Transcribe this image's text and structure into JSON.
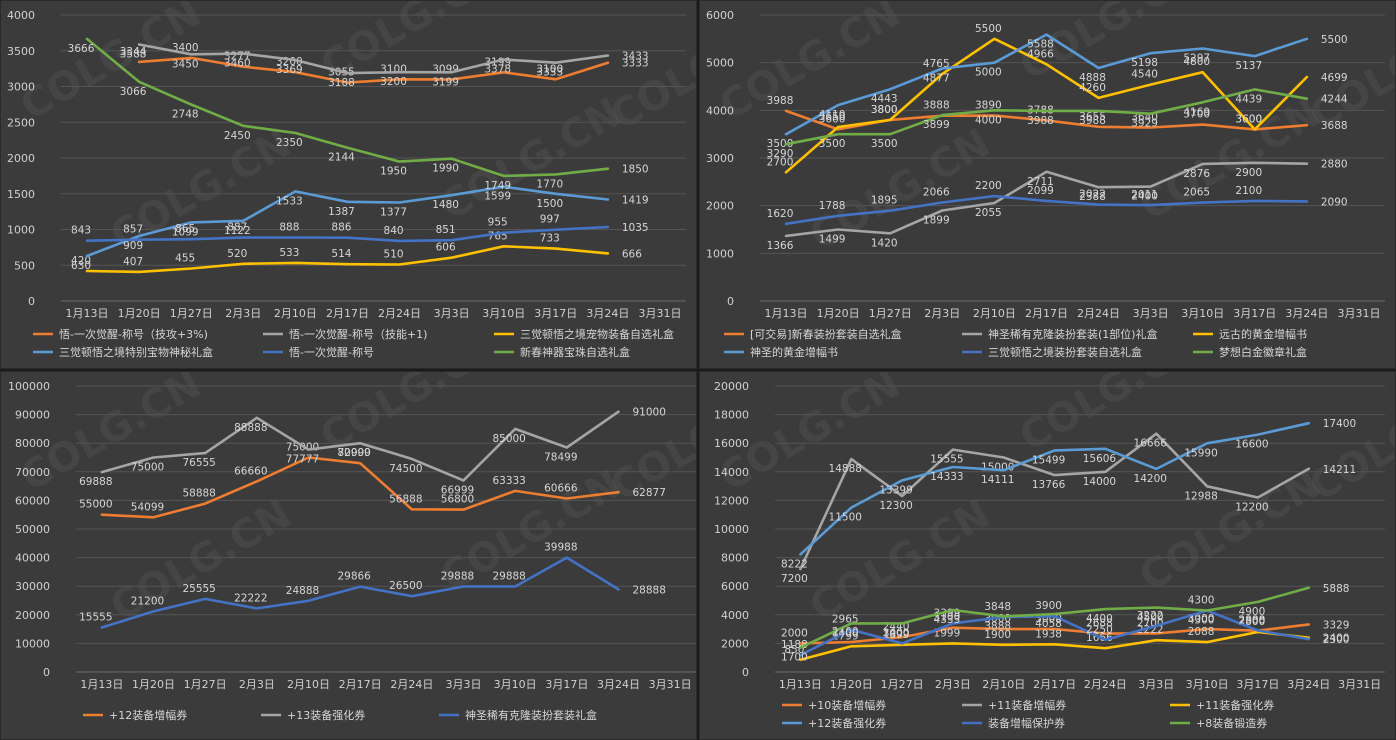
{
  "watermark": "COLG.CN",
  "chart_data": [
    {
      "type": "line",
      "categories": [
        "1月13日",
        "1月20日",
        "1月27日",
        "2月3日",
        "2月10日",
        "2月17日",
        "2月24日",
        "3月3日",
        "3月10日",
        "3月17日",
        "3月24日",
        "3月31日"
      ],
      "ylim": [
        0,
        4000
      ],
      "yticks": [
        0,
        500,
        1000,
        1500,
        2000,
        2500,
        3000,
        3500,
        4000
      ],
      "grid": true,
      "legend_position": "bottom",
      "series": [
        {
          "name": "悟-一次觉醒-称号（技攻+3%)",
          "color": "#ed7d31",
          "values": [
            null,
            3344,
            3400,
            3277,
            3200,
            3055,
            3100,
            3099,
            3199,
            3100,
            3333,
            null
          ]
        },
        {
          "name": "悟-一次觉醒-称号（技能+1)",
          "color": "#a5a5a5",
          "values": [
            null,
            3588,
            3450,
            3460,
            3369,
            3188,
            3200,
            3199,
            3378,
            3333,
            3433,
            null
          ]
        },
        {
          "name": "三觉顿悟之境宠物装备自选礼盒",
          "color": "#ffc000",
          "values": [
            420,
            407,
            455,
            520,
            533,
            514,
            510,
            606,
            765,
            733,
            666,
            null
          ]
        },
        {
          "name": "三觉顿悟之境特别宝物神秘礼盒",
          "color": "#5b9bd5",
          "values": [
            630,
            909,
            1099,
            1122,
            1533,
            1387,
            1377,
            1480,
            1599,
            1500,
            1419,
            null
          ]
        },
        {
          "name": "悟-一次觉醒-称号",
          "color": "#4472c4",
          "values": [
            843,
            857,
            865,
            887,
            888,
            886,
            840,
            851,
            955,
            997,
            1035,
            null
          ]
        },
        {
          "name": "新春神器宝珠自选礼盒",
          "color": "#70ad47",
          "values": [
            3666,
            3066,
            2748,
            2450,
            2350,
            2144,
            1950,
            1990,
            1749,
            1770,
            1850,
            null
          ]
        }
      ]
    },
    {
      "type": "line",
      "categories": [
        "1月13日",
        "1月20日",
        "1月27日",
        "2月3日",
        "2月10日",
        "2月17日",
        "2月24日",
        "3月3日",
        "3月10日",
        "3月17日",
        "3月24日",
        "3月31日"
      ],
      "ylim": [
        0,
        6000
      ],
      "yticks": [
        0,
        1000,
        2000,
        3000,
        4000,
        5000,
        6000
      ],
      "grid": true,
      "legend_position": "bottom",
      "series": [
        {
          "name": "[可交易]新春装扮套装自选礼盒",
          "color": "#ed7d31",
          "values": [
            3988,
            3600,
            3800,
            3888,
            3890,
            3788,
            3655,
            3640,
            3700,
            3600,
            3688,
            null
          ]
        },
        {
          "name": "神圣稀有克隆装扮套装(1部位)礼盒",
          "color": "#a5a5a5",
          "values": [
            1366,
            1499,
            1420,
            1899,
            2055,
            2711,
            2388,
            2400,
            2876,
            2900,
            2880,
            null
          ]
        },
        {
          "name": "远古的黄金增幅书",
          "color": "#ffc000",
          "values": [
            2700,
            3650,
            3800,
            4765,
            5500,
            4966,
            4260,
            4540,
            4800,
            3600,
            4699,
            null
          ]
        },
        {
          "name": "神圣的黄金增幅书",
          "color": "#5b9bd5",
          "values": [
            3500,
            4110,
            4443,
            4877,
            5000,
            5588,
            4888,
            5198,
            5297,
            5137,
            5500,
            null
          ]
        },
        {
          "name": "三觉顿悟之境装扮套装自选礼盒",
          "color": "#4472c4",
          "values": [
            1620,
            1788,
            1895,
            2066,
            2200,
            2099,
            2022,
            2011,
            2065,
            2100,
            2090,
            null
          ]
        },
        {
          "name": "梦想白金徽章礼盒",
          "color": "#70ad47",
          "values": [
            3290,
            3500,
            3500,
            3899,
            4000,
            3988,
            3988,
            3929,
            4169,
            4439,
            4244,
            null
          ]
        }
      ]
    },
    {
      "type": "line",
      "categories": [
        "1月13日",
        "1月20日",
        "1月27日",
        "2月3日",
        "2月10日",
        "2月17日",
        "2月24日",
        "3月3日",
        "3月10日",
        "3月17日",
        "3月24日",
        "3月31日"
      ],
      "ylim": [
        0,
        100000
      ],
      "yticks": [
        0,
        10000,
        20000,
        30000,
        40000,
        50000,
        60000,
        70000,
        80000,
        90000,
        100000
      ],
      "grid": true,
      "legend_position": "bottom",
      "series": [
        {
          "name": "+12装备增幅券",
          "color": "#ed7d31",
          "values": [
            55000,
            54099,
            58888,
            66660,
            75000,
            72999,
            56888,
            56800,
            63333,
            60666,
            62877,
            null
          ]
        },
        {
          "name": "+13装备强化券",
          "color": "#a5a5a5",
          "values": [
            69888,
            75000,
            76555,
            88888,
            77777,
            80000,
            74500,
            66999,
            85000,
            78499,
            91000,
            null
          ]
        },
        {
          "name": "神圣稀有克隆装扮套装礼盒",
          "color": "#4472c4",
          "values": [
            15555,
            21200,
            25555,
            22222,
            24888,
            29866,
            26500,
            29888,
            29888,
            39988,
            28888,
            null
          ]
        }
      ]
    },
    {
      "type": "line",
      "categories": [
        "1月13日",
        "1月20日",
        "1月27日",
        "2月3日",
        "2月10日",
        "2月17日",
        "2月24日",
        "3月3日",
        "3月10日",
        "3月17日",
        "3月24日",
        "3月31日"
      ],
      "ylim": [
        0,
        20000
      ],
      "yticks": [
        0,
        2000,
        4000,
        6000,
        8000,
        10000,
        12000,
        14000,
        16000,
        18000,
        20000
      ],
      "grid": true,
      "legend_position": "bottom",
      "series": [
        {
          "name": "+10装备增幅券",
          "color": "#ed7d31",
          "values": [
            2000,
            2100,
            2440,
            3100,
            3000,
            3000,
            2688,
            2700,
            3000,
            2888,
            3329,
            null
          ]
        },
        {
          "name": "+11装备增幅券",
          "color": "#a5a5a5",
          "values": [
            7200,
            14888,
            12300,
            15555,
            15000,
            13766,
            14000,
            16666,
            12988,
            12200,
            14211,
            null
          ]
        },
        {
          "name": "+11装备强化券",
          "color": "#ffc000",
          "values": [
            850,
            1799,
            1899,
            1999,
            1900,
            1938,
            1666,
            2222,
            2088,
            2800,
            2400,
            null
          ]
        },
        {
          "name": "+12装备强化券",
          "color": "#5b9bd5",
          "values": [
            8222,
            11500,
            13399,
            14333,
            14111,
            15499,
            15606,
            14200,
            15990,
            16600,
            17400,
            null
          ]
        },
        {
          "name": "装备增幅保护券",
          "color": "#4472c4",
          "values": [
            1188,
            2965,
            2000,
            3399,
            3848,
            3900,
            2250,
            3222,
            4300,
            2900,
            2300,
            null
          ]
        },
        {
          "name": "+8装备锻造券",
          "color": "#70ad47",
          "values": [
            1700,
            3400,
            3400,
            4333,
            3888,
            4058,
            4400,
            4500,
            4300,
            4900,
            5888,
            null
          ]
        }
      ]
    }
  ]
}
